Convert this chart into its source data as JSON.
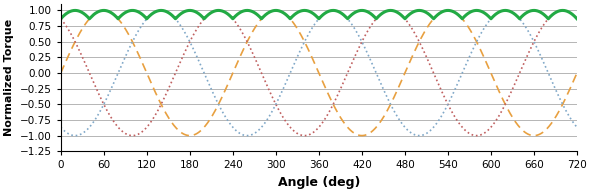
{
  "title": "",
  "xlabel": "Angle (deg)",
  "ylabel": "Normalized Torque",
  "xlim": [
    0,
    720
  ],
  "ylim": [
    -1.25,
    1.1
  ],
  "yticks": [
    1.0,
    0.75,
    0.5,
    0.25,
    0.0,
    -0.25,
    -0.5,
    -0.75,
    -1.0,
    -1.25
  ],
  "xticks": [
    0,
    60,
    120,
    180,
    240,
    300,
    360,
    420,
    480,
    540,
    600,
    660,
    720
  ],
  "pole1_color": "#E8A040",
  "pole2_color": "#C06060",
  "pole3_color": "#80A8C8",
  "sum_color": "#22AA44",
  "sum_linewidth": 2.2,
  "pole_linewidth": 1.2,
  "grid_color": "#AAAAAA",
  "bg_color": "#FFFFFF",
  "figsize": [
    5.91,
    1.93
  ],
  "dpi": 100
}
